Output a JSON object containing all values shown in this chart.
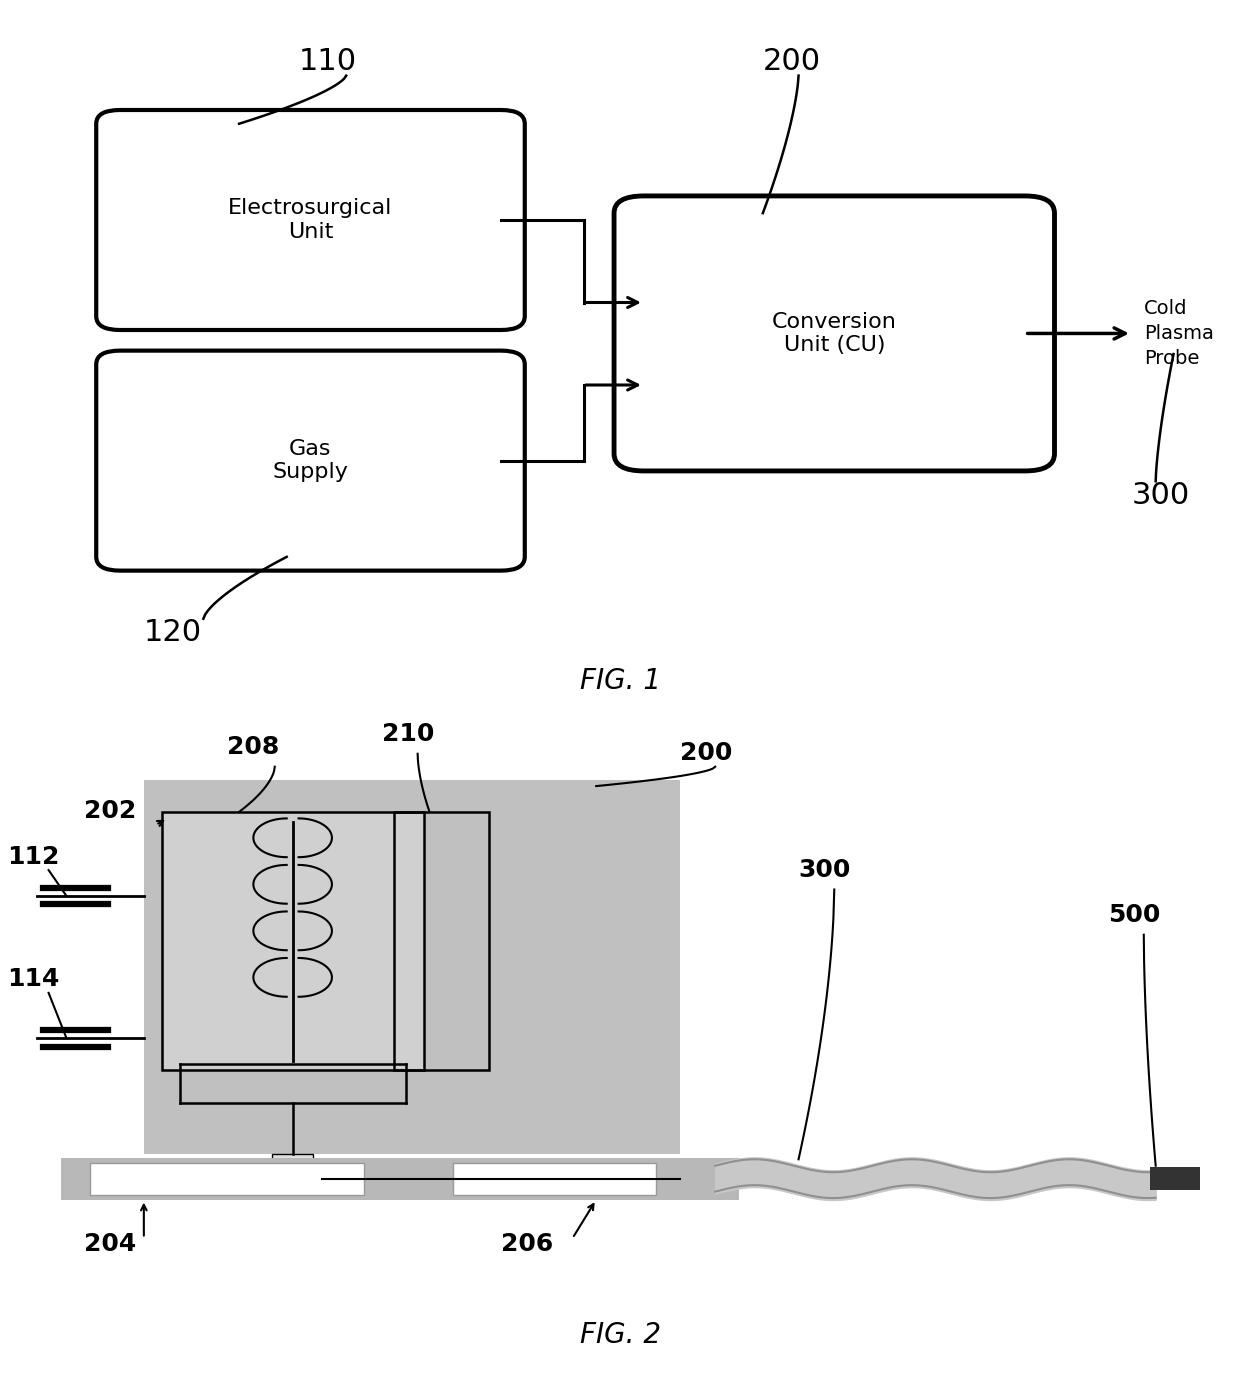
{
  "bg_color": "#ffffff",
  "fig1": {
    "title": "FIG. 1",
    "box1_label": "Electrosurgical\nUnit",
    "box1_num": "110",
    "box2_label": "Gas\nSupply",
    "box2_num": "120",
    "box3_label": "Conversion\nUnit (CU)",
    "box3_num": "200",
    "arrow_label": "Cold\nPlasma\nProbe",
    "arrow_num": "300"
  },
  "fig2": {
    "title": "FIG. 2",
    "box_fill": "#c0c0c0",
    "inner_fill": "#d0d0d0",
    "base_fill": "#b8b8b8",
    "wave_fill": "#c8c8c8",
    "tip_fill": "#333333"
  }
}
